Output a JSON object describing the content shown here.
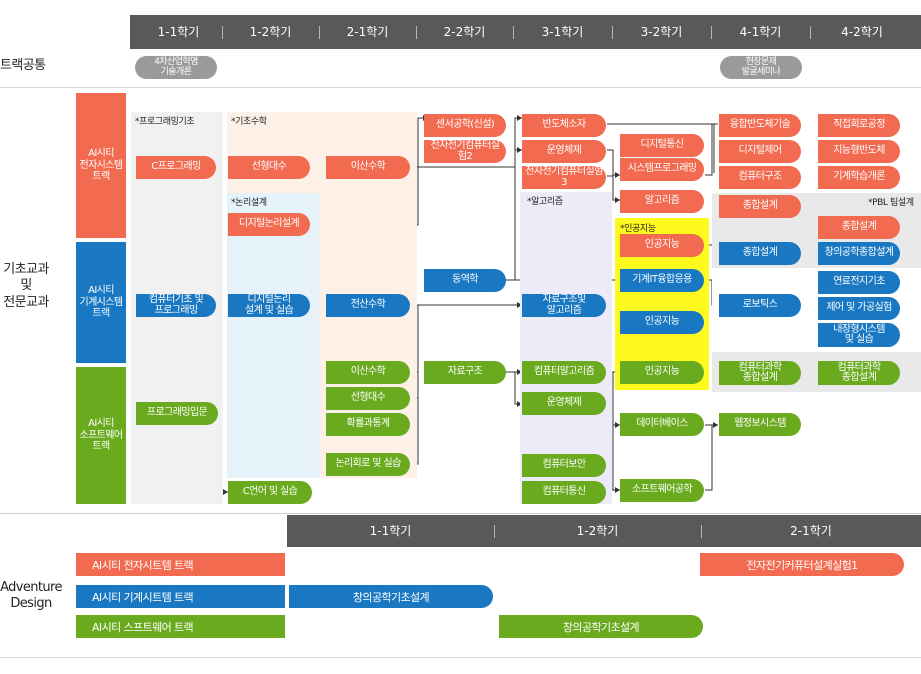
{
  "semesters": [
    "1-1학기",
    "1-2학기",
    "2-1학기",
    "2-2학기",
    "3-1학기",
    "3-2학기",
    "4-1학기",
    "4-2학기"
  ],
  "rows": {
    "common_label": "트랙공통",
    "core_label": "기초교과\n및\n전문교과",
    "adventure_label": "Adventure\nDesign"
  },
  "common_courses": [
    "4차산업혁명\n기술개론",
    "현장문제\n발굴세미나"
  ],
  "tracks": [
    {
      "name": "AI시티\n전자시스템\n트랙",
      "color": "#f26b50"
    },
    {
      "name": "AI시티\n기계시스템\n트랙",
      "color": "#1a78c2"
    },
    {
      "name": "AI시티\n소프트웨어\n트랙",
      "color": "#6aaa1f"
    }
  ],
  "region_labels": {
    "programming": "*프로그래밍기초",
    "math": "*기초수학",
    "logic": "*논리설계",
    "algorithm": "*알고리즘",
    "ai": "*인공지능",
    "pbl": "*PBL 팀설계"
  },
  "courses": [
    {
      "id": "c-programming",
      "label": "C프로그래밍",
      "track": "o"
    },
    {
      "id": "linear-algebra-1",
      "label": "선형대수",
      "track": "o"
    },
    {
      "id": "discrete-math-1",
      "label": "이산수학",
      "track": "o"
    },
    {
      "id": "digital-logic-design",
      "label": "디지털논리설계",
      "track": "o"
    },
    {
      "id": "sensor-engineering",
      "label": "센서공학(신설)",
      "track": "o"
    },
    {
      "id": "ee-computer-lab-2",
      "label": "전자전기컴퓨터실험2",
      "track": "o"
    },
    {
      "id": "semiconductor-devices",
      "label": "반도체소자",
      "track": "o"
    },
    {
      "id": "operating-systems-1",
      "label": "운영체제",
      "track": "o"
    },
    {
      "id": "ee-computer-lab-3",
      "label": "전자전기컴퓨터실험3",
      "track": "o"
    },
    {
      "id": "digital-communication",
      "label": "디지털통신",
      "track": "o"
    },
    {
      "id": "system-programming",
      "label": "시스템프로그래밍",
      "track": "o"
    },
    {
      "id": "algorithms",
      "label": "알고리즘",
      "track": "o"
    },
    {
      "id": "ai-ee",
      "label": "인공지능",
      "track": "o"
    },
    {
      "id": "semiconductor-convergence",
      "label": "융합반도체기술",
      "track": "o"
    },
    {
      "id": "digital-control",
      "label": "디지털제어",
      "track": "o"
    },
    {
      "id": "computer-architecture",
      "label": "컴퓨터구조",
      "track": "o"
    },
    {
      "id": "integrated-design-ee",
      "label": "종합설계",
      "track": "o"
    },
    {
      "id": "integrated-circuit-eng",
      "label": "직접회로공정",
      "track": "o"
    },
    {
      "id": "smart-semiconductor",
      "label": "지능형반도체",
      "track": "o"
    },
    {
      "id": "machine-learning-intro",
      "label": "기계학습개론",
      "track": "o"
    },
    {
      "id": "integrated-design-pbl",
      "label": "종합설계",
      "track": "o"
    },
    {
      "id": "computer-basics",
      "label": "컴퓨터기초 및\n프로그래밍",
      "track": "b"
    },
    {
      "id": "digital-logic-lab",
      "label": "디지털논리\n설계 및 실습",
      "track": "b"
    },
    {
      "id": "dynamics",
      "label": "동역학",
      "track": "b"
    },
    {
      "id": "numerical-math",
      "label": "전산수학",
      "track": "b"
    },
    {
      "id": "data-structures-algo",
      "label": "자료구조및\n알고리즘",
      "track": "b"
    },
    {
      "id": "mechanical-it",
      "label": "기계IT융합응용",
      "track": "b"
    },
    {
      "id": "ai-me",
      "label": "인공지능",
      "track": "b"
    },
    {
      "id": "integrated-design-me",
      "label": "종합설계",
      "track": "b"
    },
    {
      "id": "robotics",
      "label": "로보틱스",
      "track": "b"
    },
    {
      "id": "creative-integrated-design",
      "label": "창의공학종합설계",
      "track": "b"
    },
    {
      "id": "fuel-cells",
      "label": "연료전지기초",
      "track": "b"
    },
    {
      "id": "control-processing-lab",
      "label": "제어 및 가공실험",
      "track": "b"
    },
    {
      "id": "embedded-systems-lab",
      "label": "내장형시스템\n및 실습",
      "track": "b"
    },
    {
      "id": "programming-intro",
      "label": "프로그래밍입문",
      "track": "g"
    },
    {
      "id": "c-language-lab",
      "label": "C언어 및 실습",
      "track": "g"
    },
    {
      "id": "discrete-math-2",
      "label": "이산수학",
      "track": "g"
    },
    {
      "id": "linear-algebra-2",
      "label": "선형대수",
      "track": "g"
    },
    {
      "id": "probability-statistics",
      "label": "확률과통계",
      "track": "g"
    },
    {
      "id": "logic-circuits-lab",
      "label": "논리회로 및 실습",
      "track": "g"
    },
    {
      "id": "data-structures",
      "label": "자료구조",
      "track": "g"
    },
    {
      "id": "computer-algorithms",
      "label": "컴퓨터알고리즘",
      "track": "g"
    },
    {
      "id": "operating-systems-2",
      "label": "운영체제",
      "track": "g"
    },
    {
      "id": "computer-security",
      "label": "컴퓨터보안",
      "track": "g"
    },
    {
      "id": "computer-networks",
      "label": "컴퓨터통신",
      "track": "g"
    },
    {
      "id": "ai-sw",
      "label": "인공지능",
      "track": "g"
    },
    {
      "id": "databases",
      "label": "데이터베이스",
      "track": "g"
    },
    {
      "id": "software-engineering",
      "label": "소프트웨어공학",
      "track": "g"
    },
    {
      "id": "web-info-systems",
      "label": "웹정보시스템",
      "track": "g"
    },
    {
      "id": "computer-science-design-1",
      "label": "컴퓨터과학\n종합설계",
      "track": "g"
    },
    {
      "id": "computer-science-design-2",
      "label": "컴퓨터과학\n종합설계",
      "track": "g"
    }
  ],
  "adventure": {
    "semesters": [
      "1-1학기",
      "1-2학기",
      "2-1학기"
    ],
    "tracks": [
      "AI시티 전자시트템 트랙",
      "AI시티 기계시트템 트랙",
      "AI시티 스프트웨어 트랙"
    ],
    "courses": [
      {
        "id": "adv-ee-lab-1",
        "label": "전자전기커퓨터설계실험1",
        "track": "o"
      },
      {
        "id": "adv-creative-design-me",
        "label": "창의공학기초설계",
        "track": "b"
      },
      {
        "id": "adv-creative-design-sw",
        "label": "창의공학기초설계",
        "track": "g"
      }
    ]
  }
}
